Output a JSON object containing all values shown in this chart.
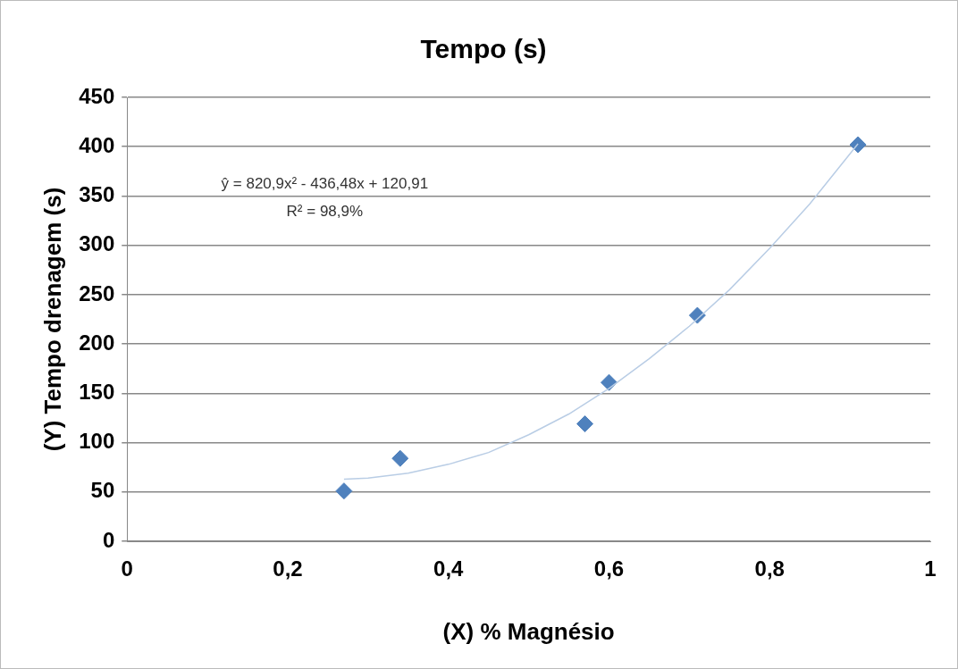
{
  "chart_data": {
    "type": "scatter",
    "title": "Tempo (s)",
    "xlabel": "(X) % Magnésio",
    "ylabel": "(Y) Tempo drenagem (s)",
    "x": [
      0.27,
      0.34,
      0.57,
      0.6,
      0.71,
      0.91
    ],
    "series": [
      {
        "color": "#4f81bd",
        "marker": "diamond",
        "values": [
          51,
          84,
          119,
          161,
          229,
          402
        ]
      },
      {
        "type": "line",
        "color": "#b9cde5",
        "marker": "none",
        "x": [
          0.27,
          0.3,
          0.35,
          0.4,
          0.45,
          0.5,
          0.55,
          0.6,
          0.65,
          0.7,
          0.75,
          0.8,
          0.85,
          0.91
        ],
        "values": [
          63,
          64,
          69,
          78,
          90,
          108,
          129,
          155,
          185,
          218,
          255,
          297,
          342,
          403
        ]
      }
    ],
    "xlim": [
      0,
      1
    ],
    "xticks": [
      0,
      {
        "value": 0.2,
        "label": "0,2"
      },
      {
        "value": 0.4,
        "label": "0,4"
      },
      {
        "value": 0.6,
        "label": "0,6"
      },
      {
        "value": 0.8,
        "label": "0,8"
      },
      1
    ],
    "ylim": [
      0,
      450
    ],
    "yticks": [
      0,
      50,
      100,
      150,
      200,
      250,
      300,
      350,
      400,
      450
    ],
    "grid": "y",
    "legend": false,
    "annotations": [
      "ŷ = 820,9x² - 436,48x + 120,91",
      "R² = 98,9%"
    ]
  }
}
